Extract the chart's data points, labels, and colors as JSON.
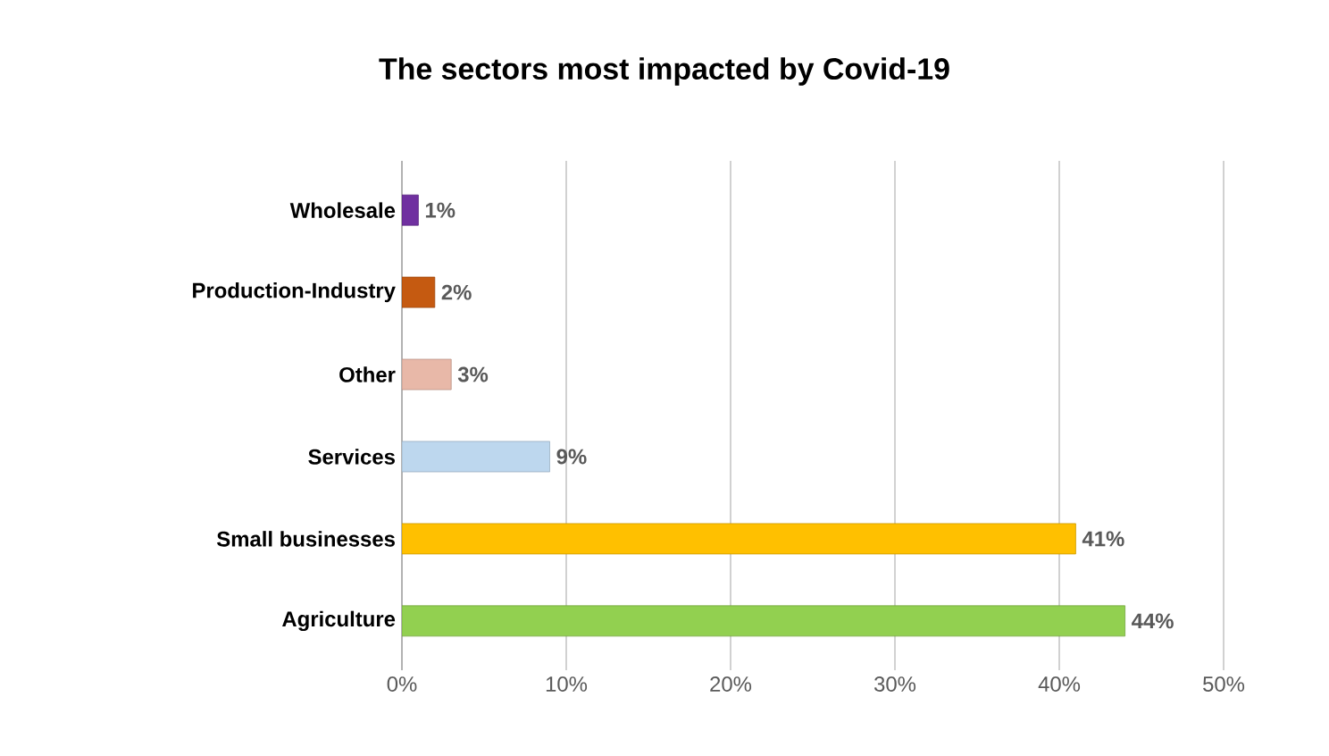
{
  "chart_data": {
    "type": "bar",
    "orientation": "horizontal",
    "title": "The sectors most impacted by Covid-19",
    "categories": [
      "Wholesale",
      "Production-Industry",
      "Other",
      "Services",
      "Small businesses",
      "Agriculture"
    ],
    "values": [
      1,
      2,
      3,
      9,
      41,
      44
    ],
    "colors": [
      "#7030a0",
      "#c55a11",
      "#e8b8a8",
      "#bdd7ee",
      "#ffc000",
      "#92d050"
    ],
    "value_labels": [
      "1%",
      "2%",
      "3%",
      "9%",
      "41%",
      "44%"
    ],
    "xlim": [
      0,
      50
    ],
    "xticks": [
      {
        "value": 0,
        "label": "0%"
      },
      {
        "value": 10,
        "label": "10%"
      },
      {
        "value": 20,
        "label": "20%"
      },
      {
        "value": 30,
        "label": "30%"
      },
      {
        "value": 40,
        "label": "40%"
      },
      {
        "value": 50,
        "label": "50%"
      }
    ],
    "grid": "x"
  }
}
